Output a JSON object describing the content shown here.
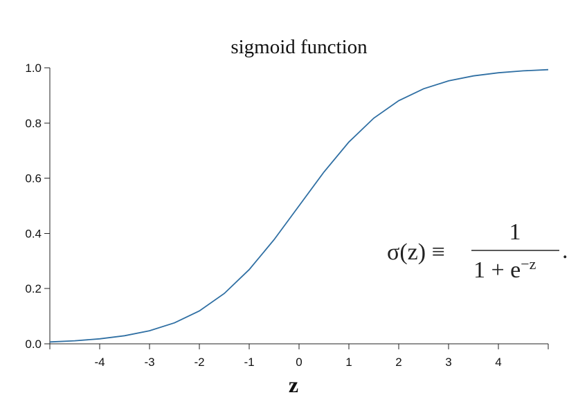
{
  "chart_data": {
    "type": "line",
    "title": "sigmoid function",
    "xlabel": "z",
    "ylabel": "",
    "xlim": [
      -5,
      5
    ],
    "ylim": [
      0,
      1
    ],
    "x_ticks": [
      -4,
      -3,
      -2,
      -1,
      0,
      1,
      2,
      3,
      4
    ],
    "x_tick_labels": [
      "-4",
      "-3",
      "-2",
      "-1",
      "0",
      "1",
      "2",
      "3",
      "4"
    ],
    "y_ticks": [
      0,
      0.2,
      0.4,
      0.6,
      0.8,
      1
    ],
    "y_tick_labels": [
      "0.0",
      "0.2",
      "0.4",
      "0.6",
      "0.8",
      "1.0"
    ],
    "grid": false,
    "line_color": "#2f6fa3",
    "series": [
      {
        "x": [
          -5,
          -4.5,
          -4,
          -3.5,
          -3,
          -2.5,
          -2,
          -1.5,
          -1,
          -0.5,
          0,
          0.5,
          1,
          1.5,
          2,
          2.5,
          3,
          3.5,
          4,
          4.5,
          5
        ],
        "values": [
          0.0067,
          0.011,
          0.018,
          0.0293,
          0.0474,
          0.0759,
          0.1192,
          0.1824,
          0.2689,
          0.3775,
          0.5,
          0.6225,
          0.7311,
          0.8176,
          0.8808,
          0.9241,
          0.9526,
          0.9707,
          0.982,
          0.989,
          0.9933
        ]
      }
    ],
    "annotation": {
      "lhs": "σ(z) ≡",
      "numerator": "1",
      "denominator_base": "1 + e",
      "denominator_exponent": "−z",
      "trailing": "."
    }
  }
}
